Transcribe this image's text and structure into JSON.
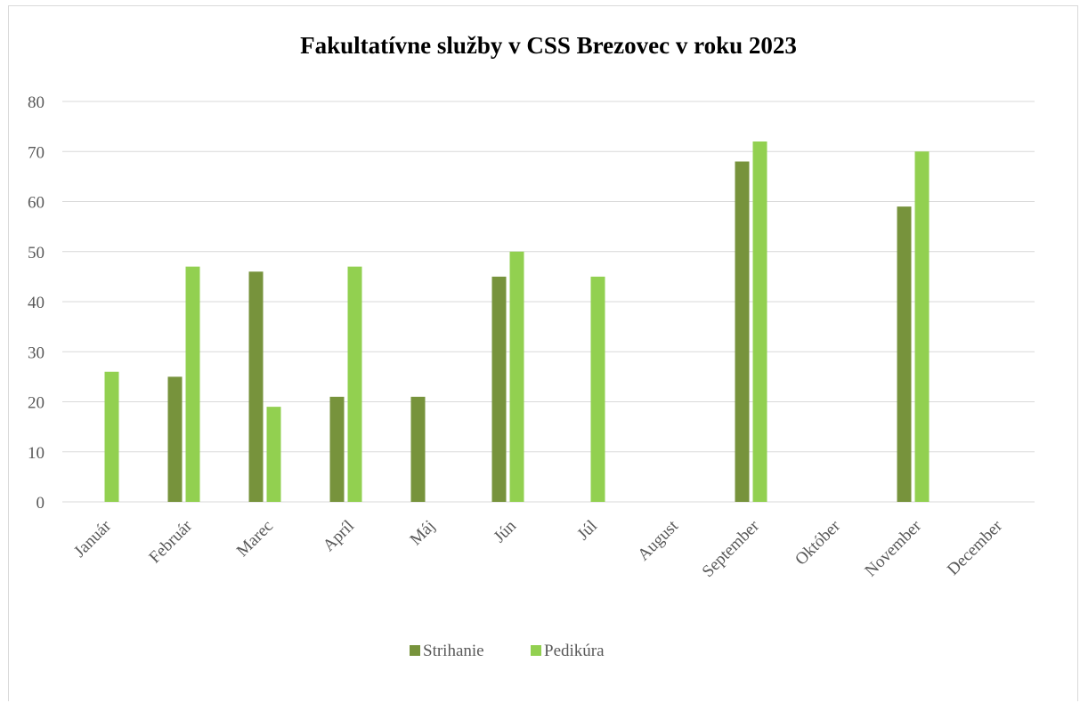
{
  "chart_data": {
    "type": "bar",
    "title": "Fakultatívne služby v CSS Brezovec v roku 2023",
    "categories": [
      "Január",
      "Február",
      "Marec",
      "Apríl",
      "Máj",
      "Jún",
      "Júl",
      "August",
      "September",
      "Október",
      "November",
      "December"
    ],
    "series": [
      {
        "name": "Strihanie",
        "color": "#77933c",
        "values": [
          0,
          25,
          46,
          21,
          21,
          45,
          0,
          0,
          68,
          0,
          59,
          0
        ]
      },
      {
        "name": "Pedikúra",
        "color": "#92d050",
        "values": [
          26,
          47,
          19,
          47,
          0,
          50,
          45,
          0,
          72,
          0,
          70,
          0
        ]
      }
    ],
    "ylim": [
      0,
      80
    ],
    "yticks": [
      0,
      10,
      20,
      30,
      40,
      50,
      60,
      70,
      80
    ],
    "grid": true,
    "legend": "bottom"
  }
}
